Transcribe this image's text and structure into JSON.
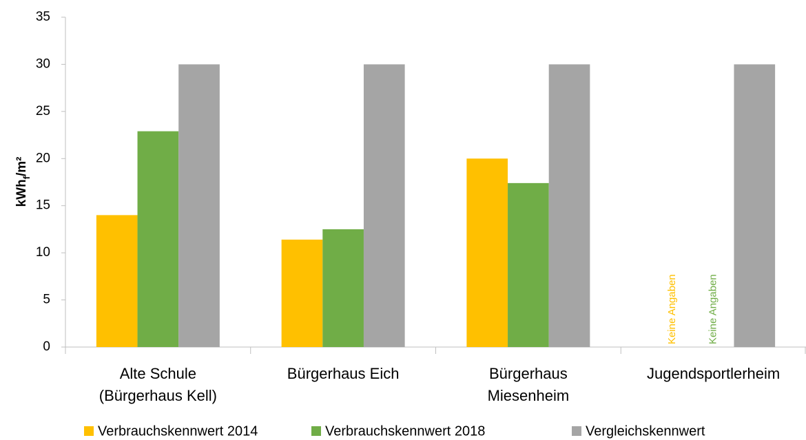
{
  "chart_data": {
    "type": "bar",
    "y_label": [
      "kWh",
      "f",
      "/m²"
    ],
    "categories": [
      [
        "Alte Schule",
        "(Bürgerhaus Kell)"
      ],
      [
        "Bürgerhaus Eich"
      ],
      [
        "Bürgerhaus",
        "Miesenheim"
      ],
      [
        "Jugendsportlerheim"
      ]
    ],
    "series": [
      {
        "name": "Verbrauchskennwert 2014",
        "color": "#ffc000",
        "values": [
          14,
          11.4,
          20,
          null
        ],
        "value_labels": [
          null,
          null,
          null,
          "Keine Angaben"
        ]
      },
      {
        "name": "Verbrauchskennwert 2018",
        "color": "#70ad47",
        "values": [
          22.9,
          12.5,
          17.4,
          null
        ],
        "value_labels": [
          null,
          null,
          null,
          "Keine Angaben"
        ]
      },
      {
        "name": "Vergleichskennwert",
        "color": "#a5a5a5",
        "values": [
          30,
          30,
          30,
          30
        ]
      }
    ],
    "ylim": [
      0,
      35
    ],
    "yticks": [
      0,
      5,
      10,
      15,
      20,
      25,
      30,
      35
    ],
    "grid": false,
    "legend": "bottom"
  }
}
